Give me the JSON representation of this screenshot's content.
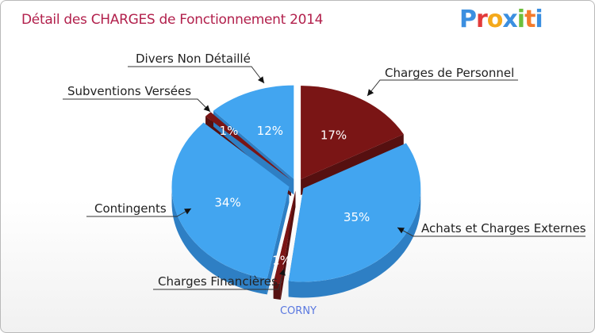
{
  "title": "Détail des CHARGES de Fonctionnement 2014",
  "logo": {
    "text": "Proxiti",
    "letters": [
      "P",
      "r",
      "o",
      "x",
      "i",
      "t",
      "i"
    ],
    "colors": [
      "#3b8fe0",
      "#e23a3a",
      "#f4a91b",
      "#3b8fe0",
      "#6cbf3a",
      "#f47b2b",
      "#3b8fe0"
    ]
  },
  "city": "CORNY",
  "colors": {
    "blue": "#42a5f0",
    "blue_side": "#2e7fc4",
    "red": "#7a1515",
    "red_side": "#561010"
  },
  "chart_data": {
    "type": "pie",
    "title": "Détail des CHARGES de Fonctionnement 2014",
    "subtitle": "CORNY",
    "unit": "%",
    "slices": [
      {
        "label": "Charges de Personnel",
        "value": 17,
        "pct_label": "17%",
        "color": "red"
      },
      {
        "label": "Achats et Charges Externes",
        "value": 35,
        "pct_label": "35%",
        "color": "blue"
      },
      {
        "label": "Charges Financières",
        "value": 1,
        "pct_label": "1%",
        "color": "red"
      },
      {
        "label": "Contingents",
        "value": 34,
        "pct_label": "34%",
        "color": "blue"
      },
      {
        "label": "Subventions Versées",
        "value": 1,
        "pct_label": "1%",
        "color": "red"
      },
      {
        "label": "Divers Non Détaillé",
        "value": 12,
        "pct_label": "12%",
        "color": "blue"
      }
    ]
  }
}
